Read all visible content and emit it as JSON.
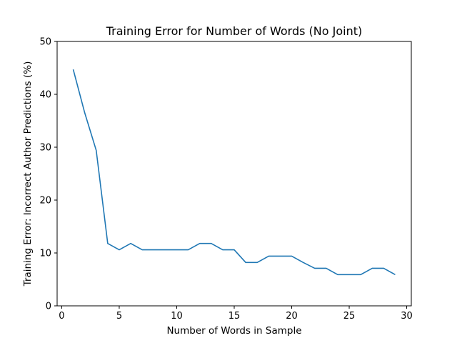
{
  "chart_data": {
    "type": "line",
    "title": "Training Error for Number of Words (No Joint)",
    "xlabel": "Number of Words in Sample",
    "ylabel": "Training Error: Incorrect Author Predictions (%)",
    "xlim": [
      -0.4,
      30.4
    ],
    "ylim": [
      0,
      50
    ],
    "xticks": [
      0,
      5,
      10,
      15,
      20,
      25,
      30
    ],
    "yticks": [
      0,
      10,
      20,
      30,
      40,
      50
    ],
    "grid": false,
    "series": [
      {
        "color": "#1f77b4",
        "x": [
          1,
          2,
          3,
          4,
          5,
          6,
          7,
          8,
          9,
          10,
          11,
          12,
          13,
          14,
          15,
          16,
          17,
          18,
          19,
          20,
          21,
          22,
          23,
          24,
          25,
          26,
          27,
          28,
          29
        ],
        "y": [
          44.7,
          36.5,
          29.4,
          11.8,
          10.6,
          11.8,
          10.6,
          10.6,
          10.6,
          10.6,
          10.6,
          11.8,
          11.8,
          10.6,
          10.6,
          8.2,
          8.2,
          9.4,
          9.4,
          9.4,
          8.2,
          7.1,
          7.1,
          5.9,
          5.9,
          5.9,
          7.1,
          7.1,
          5.9
        ]
      }
    ]
  }
}
